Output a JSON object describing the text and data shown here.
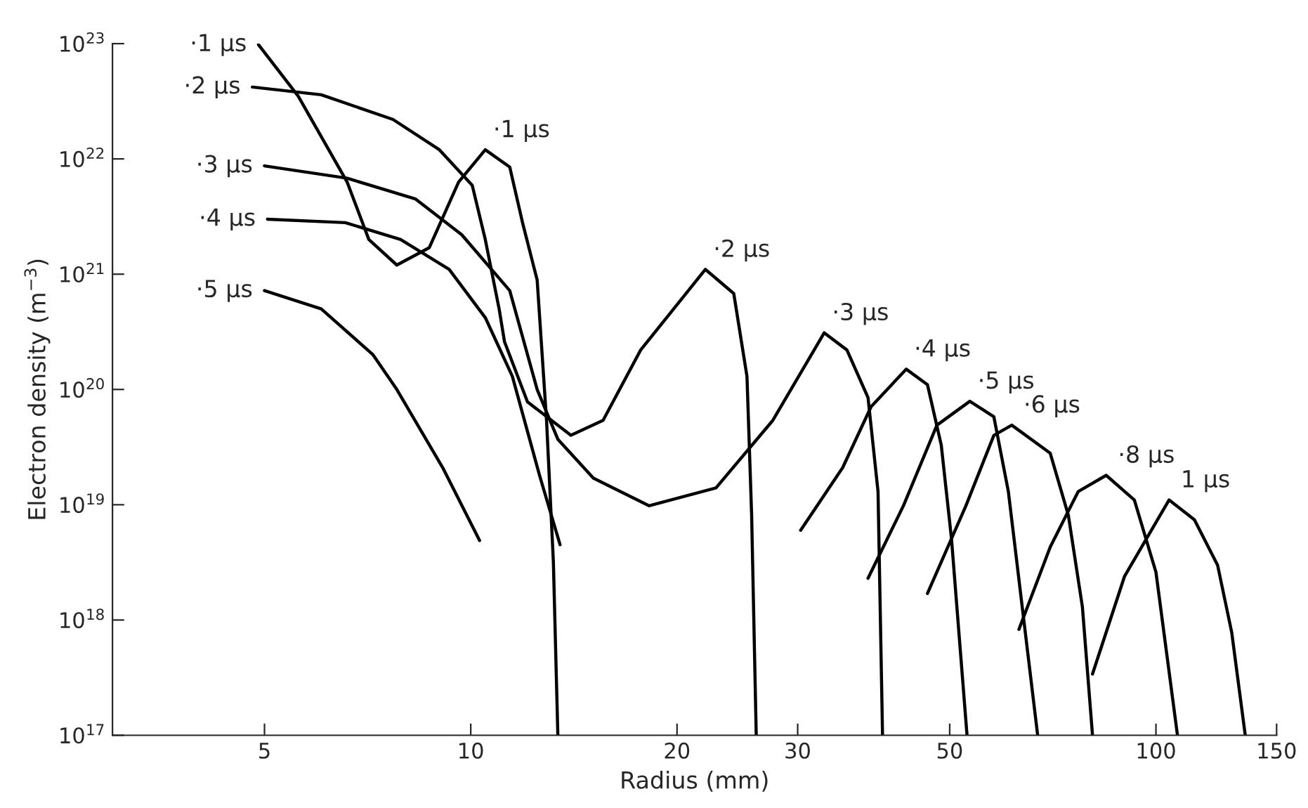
{
  "chart_data": {
    "type": "line",
    "xlabel": "Radius (mm)",
    "ylabel": "Electron density (m$^{−3}$)",
    "log": "xy",
    "xlim": [
      3,
      150
    ],
    "ylim": [
      1e+17,
      1e+23
    ],
    "xticks": [
      5,
      10,
      20,
      30,
      50,
      100,
      150
    ],
    "yticks": [
      {
        "value": 1e+17,
        "label": "10$^{17}$"
      },
      {
        "value": 1e+18,
        "label": "10$^{18}$"
      },
      {
        "value": 1e+19,
        "label": "10$^{19}$"
      },
      {
        "value": 1e+20,
        "label": "10$^{20}$"
      },
      {
        "value": 1e+21,
        "label": "10$^{21}$"
      },
      {
        "value": 1e+22,
        "label": "10$^{22}$"
      },
      {
        "value": 1e+23,
        "label": "10$^{23}$"
      }
    ],
    "grid": false,
    "legend": false,
    "marker": "none",
    "line_style": "solid",
    "series": [
      {
        "name": "·1 μs",
        "color": "#000000",
        "x": [
          4.9,
          5.6,
          6.6,
          7.1,
          7.8,
          8.7,
          9.6,
          10.5,
          11.4,
          11.9,
          12.5,
          12.9,
          13.2,
          13.4
        ],
        "values": [
          9.8e+22,
          3.5e+22,
          6.3e+21,
          2e+21,
          1.2e+21,
          1.7e+21,
          6.3e+21,
          1.2e+22,
          8.5e+21,
          2.8e+21,
          8.9e+20,
          5.4e+19,
          3.2e+18,
          1e+17
        ]
      },
      {
        "name": "·2 μs",
        "color": "#000000",
        "x": [
          4.8,
          6.05,
          7.7,
          9.0,
          10.05,
          10.5,
          11.0,
          11.2,
          12.1,
          14.0,
          15.6,
          17.7,
          22.0,
          24.2,
          25.3,
          25.7,
          26.1
        ],
        "values": [
          4.2e+22,
          3.6e+22,
          2.2e+22,
          1.2e+22,
          5.9e+21,
          2e+21,
          5e+20,
          2.6e+20,
          7.8e+19,
          4e+19,
          5.4e+19,
          2.2e+20,
          1.1e+21,
          6.8e+20,
          1.3e+20,
          8.1e+18,
          1e+17
        ]
      },
      {
        "name": "·3 μs",
        "color": "#000000",
        "x": [
          5.0,
          6.6,
          8.3,
          9.7,
          11.4,
          12.5,
          13.4,
          15.1,
          18.2,
          22.8,
          27.6,
          32.8,
          35.4,
          38.0,
          39.3,
          39.9
        ],
        "values": [
          8.7e+21,
          6.8e+21,
          4.5e+21,
          2.2e+21,
          7.2e+20,
          1e+20,
          3.7e+19,
          1.7e+19,
          9.8e+18,
          1.4e+19,
          5.4e+19,
          3.1e+20,
          2.2e+20,
          8.5e+19,
          1.3e+19,
          1e+17
        ]
      },
      {
        "name": "·4 μs",
        "color": "#000000",
        "x": [
          5.05,
          6.56,
          7.9,
          9.3,
          10.5,
          11.5,
          12.6,
          13.5,
          20.0,
          30.3,
          34.9,
          38.4,
          43.2,
          46.4,
          48.6,
          50.3,
          53.0
        ],
        "values": [
          3e+21,
          2.8e+21,
          2e+21,
          1.1e+21,
          4.2e+20,
          1.3e+20,
          1.8e+19,
          4.5e+18,
          null,
          6e+18,
          2.1e+19,
          7.1e+19,
          1.5e+20,
          1.1e+20,
          3.3e+19,
          5.1e+18,
          1e+17
        ]
      },
      {
        "name": "·5 μs",
        "color": "#000000",
        "x": [
          5.0,
          6.05,
          7.2,
          7.8,
          9.1,
          10.3,
          20.0,
          38.0,
          42.8,
          47.9,
          53.5,
          58.0,
          60.9,
          63.8,
          67.2
        ],
        "values": [
          7.2e+20,
          5e+20,
          2e+20,
          1e+20,
          2.1e+19,
          4.9e+18,
          null,
          2.3e+18,
          9.8e+18,
          4.9e+19,
          7.9e+19,
          5.8e+19,
          1.3e+19,
          1.3e+18,
          1e+17
        ]
      },
      {
        "name": "·6 μs",
        "color": "#000000",
        "x": [
          46.4,
          52.8,
          58.0,
          61.6,
          70.1,
          74.5,
          78.1,
          80.8
        ],
        "values": [
          1.7e+18,
          9.8e+18,
          4e+19,
          4.9e+19,
          2.8e+19,
          8.1e+18,
          1.3e+18,
          1e+17
        ]
      },
      {
        "name": "·8 μs",
        "color": "#000000",
        "x": [
          63.1,
          70.1,
          77.0,
          84.6,
          93.0,
          100,
          107.5
        ],
        "values": [
          8.3e+17,
          4.3e+18,
          1.3e+19,
          1.8e+19,
          1.1e+19,
          2.6e+18,
          1e+17
        ]
      },
      {
        "name": "1 μs",
        "color": "#000000",
        "x": [
          80.8,
          90,
          104.5,
          113.8,
          123,
          129,
          135
        ],
        "values": [
          3.4e+17,
          2.4e+18,
          1.1e+19,
          7.4e+18,
          3e+18,
          7.8e+17,
          1e+17
        ]
      }
    ],
    "annotations": [
      {
        "text": "·1 μs",
        "x": 10.5,
        "y": 1.2e+22
      },
      {
        "text": "·2 μs",
        "x": 22.0,
        "y": 1.1e+21
      },
      {
        "text": "·3 μs",
        "x": 32.8,
        "y": 3.1e+20
      },
      {
        "text": "·4 μs",
        "x": 43.2,
        "y": 1.5e+20
      },
      {
        "text": "·5 μs",
        "x": 53.5,
        "y": 7.9e+19
      }
    ]
  }
}
